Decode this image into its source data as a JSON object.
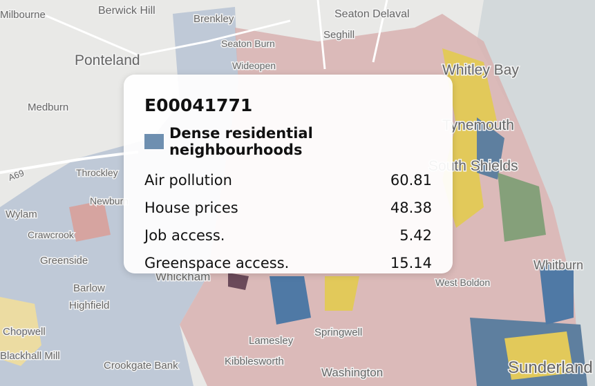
{
  "map": {
    "places": [
      "Milbourne",
      "Berwick Hill",
      "Seaton Delaval",
      "Brenkley",
      "Seghill",
      "Seaton Burn",
      "Ponteland",
      "Wideopen",
      "Whitley Bay",
      "Medburn",
      "Tynemouth",
      "South Shields",
      "A69",
      "Throckley",
      "Newburn",
      "Wylam",
      "Crawcrook",
      "Greenside",
      "Barlow",
      "Whickham",
      "Highfield",
      "Chopwell",
      "Blackhall Mill",
      "Crookgate Bank",
      "Kibblesworth",
      "Lamesley",
      "Springwell",
      "Washington",
      "West Boldon",
      "Whitburn",
      "Sunderland"
    ]
  },
  "tooltip": {
    "code": "E00041771",
    "category": "Dense residential neighbourhoods",
    "category_color": "#6e8fb0",
    "rows": [
      {
        "label": "Air pollution",
        "value": 60.81
      },
      {
        "label": "House prices",
        "value": 48.38
      },
      {
        "label": "Job access.",
        "value": 5.42
      },
      {
        "label": "Greenspace access.",
        "value": 15.14
      }
    ]
  }
}
